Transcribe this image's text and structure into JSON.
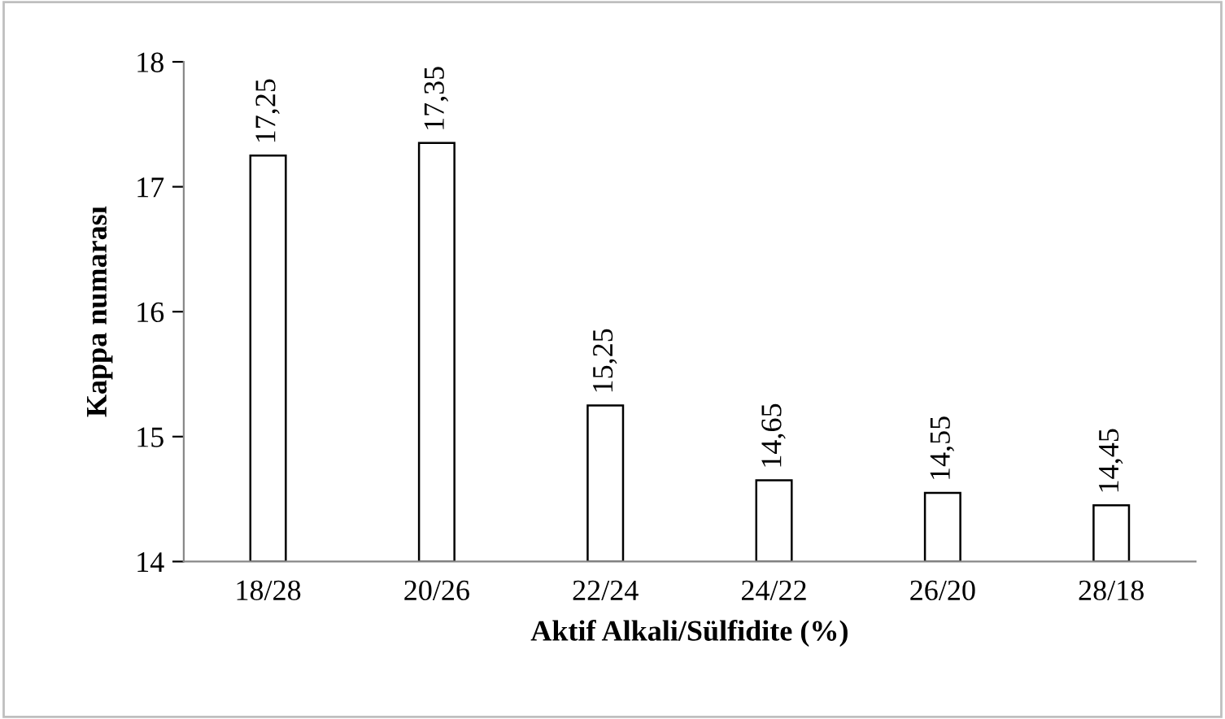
{
  "chart_data": {
    "type": "bar",
    "xlabel": "Aktif Alkali/Sülfidite (%)",
    "ylabel": "Kappa numarası",
    "categories": [
      "18/28",
      "20/26",
      "22/24",
      "24/22",
      "26/20",
      "28/18"
    ],
    "values": [
      17.25,
      17.35,
      15.25,
      14.65,
      14.55,
      14.45
    ],
    "value_labels": [
      "17,25",
      "17,35",
      "15,25",
      "14,65",
      "14,55",
      "14,45"
    ],
    "color": "#ffffff",
    "ylim": [
      14,
      18
    ],
    "yticks": [
      14,
      15,
      16,
      17,
      18
    ],
    "grid": false,
    "legend": false
  }
}
